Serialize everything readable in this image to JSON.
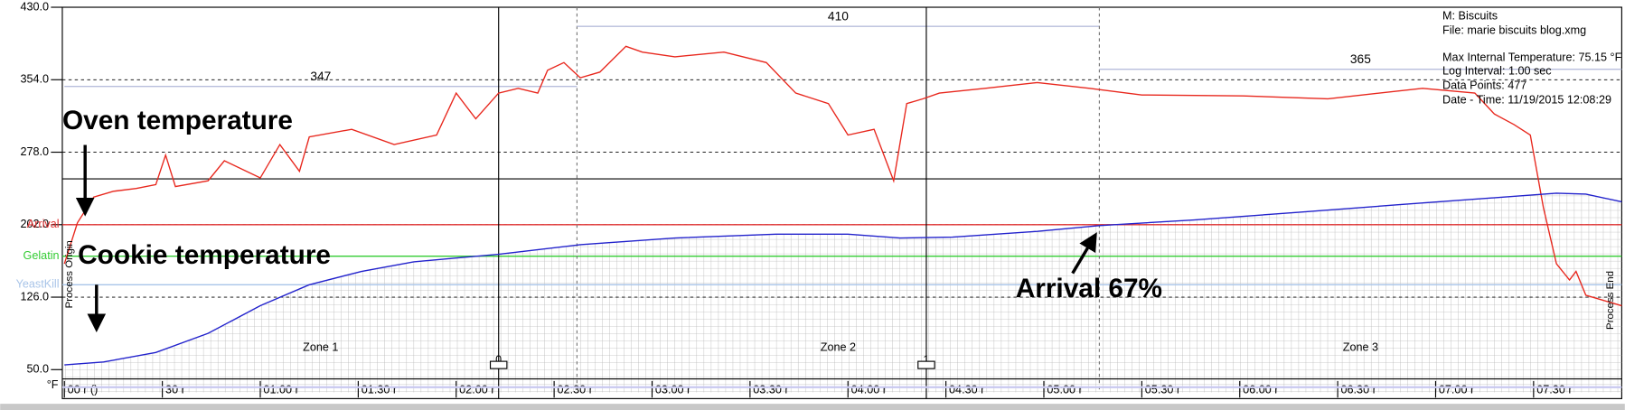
{
  "chart_data": {
    "type": "line",
    "xlim": [
      0,
      477
    ],
    "xticks": [
      {
        "value": 0,
        "label": "00 r ()"
      },
      {
        "value": 30,
        "label": "30 r"
      },
      {
        "value": 60,
        "label": "01:00 r"
      },
      {
        "value": 90,
        "label": "01:30 r"
      },
      {
        "value": 120,
        "label": "02:00 r"
      },
      {
        "value": 150,
        "label": "02:30 r"
      },
      {
        "value": 180,
        "label": "03:00 r"
      },
      {
        "value": 210,
        "label": "03:30 r"
      },
      {
        "value": 240,
        "label": "04:00 r"
      },
      {
        "value": 270,
        "label": "04:30 r"
      },
      {
        "value": 300,
        "label": "05:00 r"
      },
      {
        "value": 330,
        "label": "05:30 r"
      },
      {
        "value": 360,
        "label": "06:00 r"
      },
      {
        "value": 390,
        "label": "06:30 r"
      },
      {
        "value": 420,
        "label": "07:00 r"
      },
      {
        "value": 450,
        "label": "07:30 r"
      }
    ],
    "ylim": [
      50,
      430
    ],
    "yticks": [
      {
        "value": 50,
        "label": "50.0"
      },
      {
        "value": 126,
        "label": "126.0"
      },
      {
        "value": 202,
        "label": "202.0"
      },
      {
        "value": 278,
        "label": "278.0"
      },
      {
        "value": 354,
        "label": "354.0"
      },
      {
        "value": 430,
        "label": "430.0"
      }
    ],
    "y_unit": "°F",
    "grid": true,
    "series": [
      {
        "name": "Oven temperature",
        "color": "#e8281e",
        "x": [
          0,
          4,
          9,
          15,
          22,
          28,
          31,
          34,
          44,
          49,
          60,
          66,
          72,
          75,
          88,
          101,
          114,
          120,
          126,
          133,
          139,
          145,
          148,
          153,
          158,
          164,
          172,
          177,
          187,
          202,
          215,
          224,
          234,
          240,
          248,
          254,
          258,
          263,
          268,
          282,
          298,
          314,
          330,
          361,
          387,
          416,
          432,
          438,
          444,
          449,
          453,
          457,
          461,
          463,
          466,
          471,
          477
        ],
        "values": [
          161,
          204,
          231,
          237,
          240,
          244,
          275,
          242,
          248,
          269,
          251,
          286,
          258,
          294,
          302,
          286,
          296,
          340,
          313,
          340,
          345,
          340,
          364,
          372,
          356,
          362,
          389,
          383,
          378,
          383,
          372,
          340,
          329,
          296,
          302,
          248,
          329,
          334,
          340,
          345,
          351,
          345,
          338,
          337,
          334,
          345,
          340,
          318,
          307,
          296,
          220,
          161,
          144,
          153,
          128,
          123,
          117
        ]
      },
      {
        "name": "Cookie temperature",
        "color": "#2222cc",
        "x": [
          0,
          12,
          28,
          44,
          60,
          75,
          91,
          107,
          133,
          158,
          187,
          218,
          240,
          256,
          272,
          298,
          317,
          346,
          378,
          409,
          441,
          457,
          466,
          477
        ],
        "values": [
          55,
          58,
          68,
          88,
          117,
          139,
          153,
          163,
          171,
          181,
          188,
          192,
          192,
          188,
          189,
          195,
          201,
          207,
          215,
          223,
          231,
          235,
          234,
          226
        ]
      }
    ],
    "thresholds": [
      {
        "label": "Arrival",
        "value": 202,
        "color": "#e03030"
      },
      {
        "label": "Gelatin",
        "value": 169,
        "color": "#33cc33"
      },
      {
        "label": "YeastKill",
        "value": 139,
        "color": "#a8c4e8"
      }
    ],
    "cursor_y": 250,
    "zones": [
      {
        "label": "Zone 1",
        "start": 0,
        "end": 157,
        "setpoint": 347
      },
      {
        "label": "Zone 2",
        "start": 157,
        "end": 317,
        "setpoint": 410
      },
      {
        "label": "Zone 3",
        "start": 317,
        "end": 477,
        "setpoint": 365
      }
    ],
    "markers": [
      {
        "label": "0",
        "x": 133
      },
      {
        "label": "1",
        "x": 264
      }
    ],
    "arrival_annotation": "Arrival 67%",
    "process_origin": "Process Origin",
    "process_end": "Process End",
    "info": [
      "M: Biscuits",
      "File: marie biscuits blog.xmg",
      "Max Internal Temperature:  75.15 °F",
      "Log Interval: 1.00 sec",
      "Data Points: 477",
      "Date - Time: 11/19/2015 12:08:29"
    ]
  }
}
